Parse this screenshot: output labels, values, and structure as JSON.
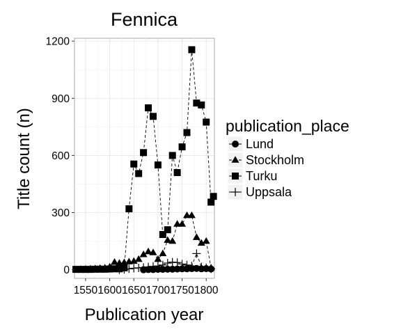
{
  "chart_data": {
    "type": "line",
    "title": "Fennica",
    "xlabel": "Publication year",
    "ylabel": "Title count (n)",
    "xlim": [
      1527,
      1817
    ],
    "ylim": [
      -45,
      1215
    ],
    "x_ticks": [
      1550,
      1600,
      1650,
      1700,
      1750,
      1800
    ],
    "x_tick_labels": [
      "1550",
      "1600",
      "1650",
      "1700",
      "1750",
      "1800"
    ],
    "y_ticks": [
      0,
      300,
      600,
      900,
      1200
    ],
    "y_tick_labels": [
      "0",
      "300",
      "600",
      "900",
      "1200"
    ],
    "grid": true,
    "background": "#ffffff",
    "line_style": "dashed",
    "legend": {
      "title": "publication_place",
      "placement": "right"
    },
    "series": [
      {
        "name": "Lund",
        "marker": "circle",
        "x": [
          1670,
          1680,
          1690,
          1700,
          1710,
          1720,
          1730,
          1740,
          1750,
          1760,
          1770,
          1780,
          1790,
          1800,
          1810
        ],
        "y": [
          0,
          1,
          1,
          2,
          2,
          3,
          3,
          4,
          5,
          5,
          6,
          7,
          5,
          6,
          4
        ]
      },
      {
        "name": "Stockholm",
        "marker": "triangle",
        "x": [
          1530,
          1540,
          1550,
          1560,
          1570,
          1580,
          1590,
          1600,
          1610,
          1620,
          1630,
          1640,
          1650,
          1660,
          1670,
          1680,
          1690,
          1700,
          1710,
          1720,
          1730,
          1740,
          1750,
          1760,
          1770,
          1780,
          1790,
          1800,
          1810
        ],
        "y": [
          2,
          3,
          4,
          5,
          6,
          8,
          10,
          15,
          40,
          35,
          38,
          42,
          45,
          55,
          80,
          95,
          90,
          55,
          85,
          155,
          150,
          240,
          240,
          285,
          285,
          170,
          140,
          150,
          10
        ]
      },
      {
        "name": "Turku",
        "marker": "square",
        "x": [
          1530,
          1540,
          1550,
          1560,
          1570,
          1580,
          1590,
          1600,
          1610,
          1620,
          1630,
          1640,
          1650,
          1660,
          1670,
          1680,
          1690,
          1700,
          1710,
          1720,
          1730,
          1740,
          1750,
          1760,
          1770,
          1780,
          1790,
          1800,
          1810,
          1815
        ],
        "y": [
          2,
          2,
          2,
          2,
          3,
          3,
          3,
          4,
          5,
          5,
          10,
          320,
          555,
          505,
          615,
          850,
          805,
          550,
          185,
          210,
          600,
          510,
          645,
          720,
          1155,
          875,
          865,
          775,
          355,
          385
        ]
      },
      {
        "name": "Uppsala",
        "marker": "plus",
        "x": [
          1620,
          1630,
          1640,
          1650,
          1660,
          1670,
          1680,
          1690,
          1700,
          1710,
          1720,
          1730,
          1740,
          1750,
          1760,
          1770,
          1780,
          1790,
          1800,
          1810
        ],
        "y": [
          0,
          2,
          5,
          8,
          10,
          12,
          15,
          18,
          20,
          25,
          35,
          40,
          38,
          30,
          25,
          20,
          85,
          15,
          10,
          5
        ]
      }
    ]
  }
}
